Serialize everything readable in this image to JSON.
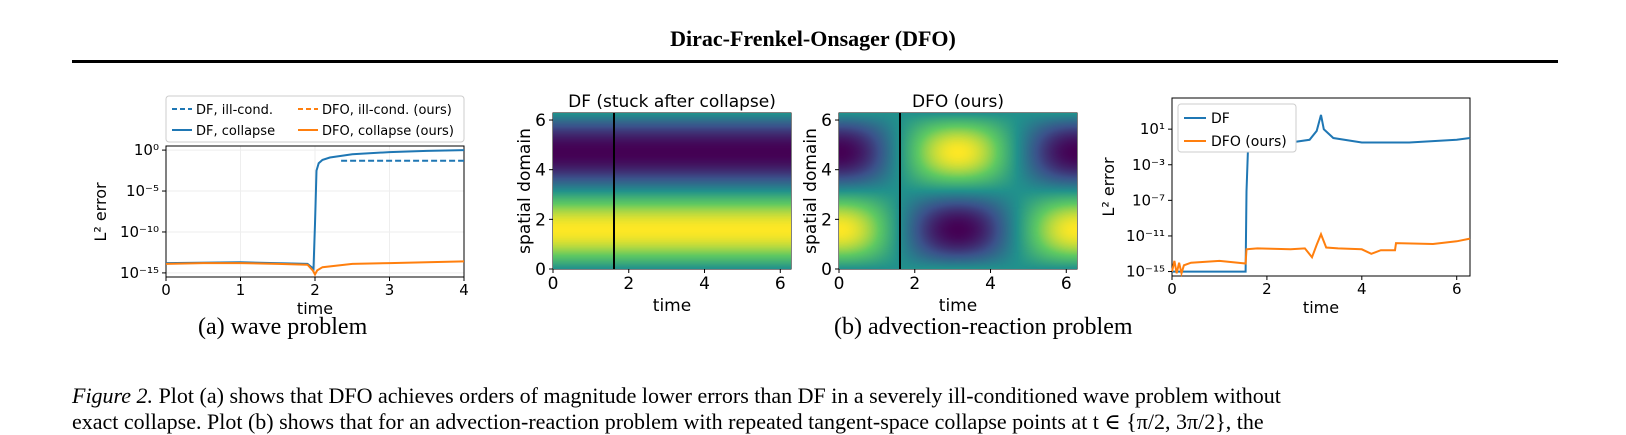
{
  "header": {
    "title": "Dirac-Frenkel-Onsager (DFO)"
  },
  "subcaptions": {
    "a": "(a) wave problem",
    "b": "(b) advection-reaction problem"
  },
  "caption": {
    "label": "Figure 2.",
    "line1": "Plot (a) shows that DFO achieves orders of magnitude lower errors than DF in a severely ill-conditioned wave problem without",
    "line2": "exact collapse. Plot (b) shows that for an advection-reaction problem with repeated tangent-space collapse points at t ∈ {π/2, 3π/2}, the"
  },
  "colors": {
    "df": "#1f77b4",
    "dfo": "#ff7f0e"
  },
  "panel_a": {
    "ylabel": "L² error",
    "xlabel": "time",
    "xticks": [
      "0",
      "1",
      "2",
      "3",
      "4"
    ],
    "yticks": [
      "10⁰",
      "10⁻⁵",
      "10⁻¹⁰",
      "10⁻¹⁵"
    ],
    "legend": [
      "DF, ill-cond.",
      "DFO, ill-cond. (ours)",
      "DF, collapse",
      "DFO, collapse (ours)"
    ]
  },
  "heatmap_df": {
    "title": "DF (stuck after collapse)",
    "xlabel": "time",
    "ylabel": "spatial domain",
    "xticks": [
      "0",
      "2",
      "4",
      "6"
    ],
    "yticks": [
      "0",
      "2",
      "4",
      "6"
    ]
  },
  "heatmap_dfo": {
    "title": "DFO (ours)",
    "xlabel": "time",
    "ylabel": "spatial domain",
    "xticks": [
      "0",
      "2",
      "4",
      "6"
    ],
    "yticks": [
      "0",
      "2",
      "4",
      "6"
    ]
  },
  "panel_b": {
    "ylabel": "L² error",
    "xlabel": "time",
    "xticks": [
      "0",
      "2",
      "4",
      "6"
    ],
    "yticks": [
      "10¹",
      "10⁻³",
      "10⁻⁷",
      "10⁻¹¹",
      "10⁻¹⁵"
    ],
    "legend": [
      "DF",
      "DFO (ours)"
    ]
  },
  "chart_data": [
    {
      "type": "line",
      "xlabel": "time",
      "ylabel": "L² error",
      "xlim": [
        0,
        4
      ],
      "ylim_log10": [
        -15.5,
        0.5
      ],
      "yscale": "log",
      "grid": true,
      "legend_position": "top",
      "series": [
        {
          "name": "DF, collapse",
          "style": "solid",
          "color": "#1f77b4",
          "x": [
            0,
            1,
            1.9,
            1.98,
            2.0,
            2.02,
            2.05,
            2.1,
            2.2,
            2.5,
            3.0,
            3.5,
            4.0
          ],
          "y_log10": [
            -13.8,
            -13.7,
            -13.9,
            -14.5,
            -9.0,
            -2.5,
            -1.6,
            -1.2,
            -0.9,
            -0.5,
            -0.25,
            -0.1,
            0.0
          ]
        },
        {
          "name": "DF, ill-cond.",
          "style": "dashed",
          "color": "#1f77b4",
          "x": [
            2.35,
            2.6,
            3.0,
            3.5,
            4.0
          ],
          "y_log10": [
            -1.3,
            -1.3,
            -1.3,
            -1.3,
            -1.3
          ]
        },
        {
          "name": "DFO, collapse (ours)",
          "style": "solid",
          "color": "#ff7f0e",
          "x": [
            0,
            0.5,
            1.0,
            1.5,
            1.9,
            1.97,
            2.0,
            2.03,
            2.1,
            2.5,
            3.0,
            3.5,
            4.0
          ],
          "y_log10": [
            -13.9,
            -13.8,
            -13.8,
            -13.9,
            -14.0,
            -14.7,
            -15.2,
            -14.7,
            -14.3,
            -13.9,
            -13.8,
            -13.7,
            -13.6
          ]
        }
      ]
    },
    {
      "type": "heatmap",
      "title": "DF (stuck after collapse)",
      "xlabel": "time",
      "ylabel": "spatial domain",
      "xlim": [
        0,
        6.28
      ],
      "ylim": [
        0,
        6.28
      ],
      "colormap": "viridis",
      "vertical_marker_x": 1.5708
    },
    {
      "type": "heatmap",
      "title": "DFO (ours)",
      "xlabel": "time",
      "ylabel": "spatial domain",
      "xlim": [
        0,
        6.28
      ],
      "ylim": [
        0,
        6.28
      ],
      "colormap": "viridis",
      "vertical_marker_x": 1.5708
    },
    {
      "type": "line",
      "xlabel": "time",
      "ylabel": "L² error",
      "xlim": [
        0,
        6.28
      ],
      "ylim_log10": [
        -15.5,
        4.5
      ],
      "yscale": "log",
      "legend_position": "top-left",
      "series": [
        {
          "name": "DF",
          "color": "#1f77b4",
          "x": [
            0,
            1.55,
            1.57,
            1.6,
            1.7,
            2.0,
            2.5,
            2.9,
            3.05,
            3.14,
            3.2,
            3.4,
            4.0,
            5.0,
            6.0,
            6.28
          ],
          "y_log10": [
            -15.0,
            -15.0,
            -6.0,
            -1.5,
            -0.3,
            -0.5,
            -0.5,
            -0.2,
            0.8,
            2.6,
            1.0,
            0.0,
            -0.5,
            -0.5,
            -0.2,
            0.0
          ]
        },
        {
          "name": "DFO (ours)",
          "color": "#ff7f0e",
          "x": [
            0,
            0.05,
            0.1,
            0.15,
            0.2,
            0.25,
            0.4,
            1.0,
            1.55,
            1.57,
            1.8,
            2.5,
            2.8,
            2.95,
            3.05,
            3.14,
            3.25,
            3.5,
            4.0,
            4.2,
            4.4,
            4.7,
            4.72,
            5.5,
            6.0,
            6.28
          ],
          "y_log10": [
            -15.0,
            -13.8,
            -15.2,
            -14.0,
            -15.2,
            -14.3,
            -14.0,
            -13.8,
            -14.1,
            -12.5,
            -12.4,
            -12.5,
            -12.4,
            -13.4,
            -12.0,
            -10.8,
            -12.3,
            -12.4,
            -12.5,
            -13.0,
            -12.6,
            -12.6,
            -11.8,
            -11.9,
            -11.6,
            -11.3
          ]
        }
      ]
    }
  ]
}
